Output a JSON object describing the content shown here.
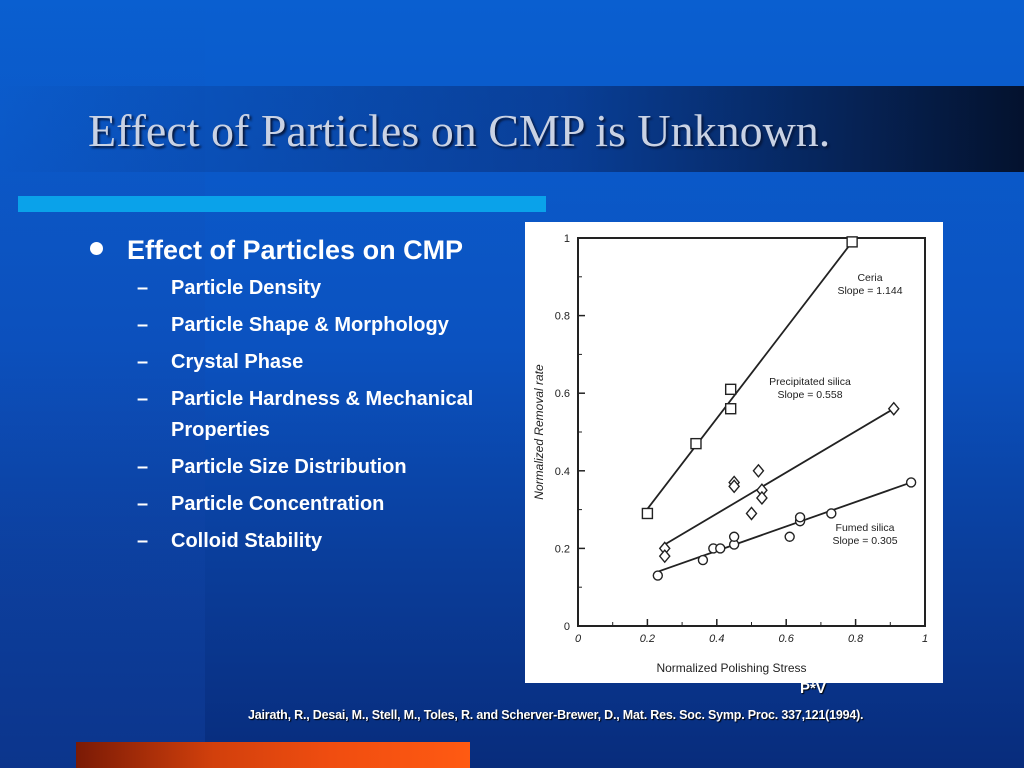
{
  "slide": {
    "title": "Effect of Particles on CMP is Unknown.",
    "bullet": "Effect of Particles on CMP",
    "subbullets": [
      {
        "dash": "–",
        "text": "Particle Density"
      },
      {
        "dash": "–",
        "text": "Particle Shape & Morphology"
      },
      {
        "dash": "–",
        "text": "Crystal Phase"
      },
      {
        "dash": "–",
        "text": "Particle Hardness & Mechanical Properties"
      },
      {
        "dash": "–",
        "text": "Particle Size Distribution"
      },
      {
        "dash": "–",
        "text": "Particle Concentration"
      },
      {
        "dash": "–",
        "text": "Colloid Stability"
      }
    ],
    "pv_label": "P*V",
    "citation": "Jairath, R., Desai, M., Stell, M., Toles, R. and Scherver-Brewer, D., Mat. Res. Soc. Symp. Proc. 337,121(1994).",
    "colors": {
      "accent_bar": "#0aa2ea",
      "bottom_bar": "#f04d10",
      "background": "#0b52c0"
    }
  },
  "chart_data": {
    "type": "scatter",
    "xlabel": "Normalized Polishing Stress",
    "ylabel": "Normalized Removal rate",
    "xlim": [
      0,
      1
    ],
    "ylim": [
      0,
      1
    ],
    "xticks": [
      "0",
      "0.2",
      "0.4",
      "0.6",
      "0.8",
      "1"
    ],
    "yticks": [
      "0",
      "0.2",
      "0.4",
      "0.6",
      "0.8",
      "1"
    ],
    "series": [
      {
        "name": "Ceria",
        "slope_label": "Slope = 1.144",
        "marker": "square",
        "points": [
          [
            0.2,
            0.29
          ],
          [
            0.34,
            0.47
          ],
          [
            0.44,
            0.61
          ],
          [
            0.44,
            0.56
          ],
          [
            0.79,
            0.99
          ]
        ],
        "fit": [
          [
            0.19,
            0.29
          ],
          [
            0.79,
            0.99
          ]
        ]
      },
      {
        "name": "Precipitated silica",
        "slope_label": "Slope = 0.558",
        "marker": "diamond",
        "points": [
          [
            0.25,
            0.2
          ],
          [
            0.25,
            0.18
          ],
          [
            0.45,
            0.37
          ],
          [
            0.45,
            0.36
          ],
          [
            0.52,
            0.4
          ],
          [
            0.5,
            0.29
          ],
          [
            0.53,
            0.35
          ],
          [
            0.53,
            0.33
          ],
          [
            0.91,
            0.56
          ]
        ],
        "fit": [
          [
            0.25,
            0.21
          ],
          [
            0.91,
            0.56
          ]
        ]
      },
      {
        "name": "Fumed silica",
        "slope_label": "Slope = 0.305",
        "marker": "circle",
        "points": [
          [
            0.23,
            0.13
          ],
          [
            0.36,
            0.17
          ],
          [
            0.39,
            0.2
          ],
          [
            0.41,
            0.2
          ],
          [
            0.45,
            0.21
          ],
          [
            0.45,
            0.23
          ],
          [
            0.61,
            0.23
          ],
          [
            0.64,
            0.27
          ],
          [
            0.64,
            0.28
          ],
          [
            0.73,
            0.29
          ],
          [
            0.96,
            0.37
          ]
        ],
        "fit": [
          [
            0.23,
            0.14
          ],
          [
            0.96,
            0.37
          ]
        ]
      }
    ]
  }
}
